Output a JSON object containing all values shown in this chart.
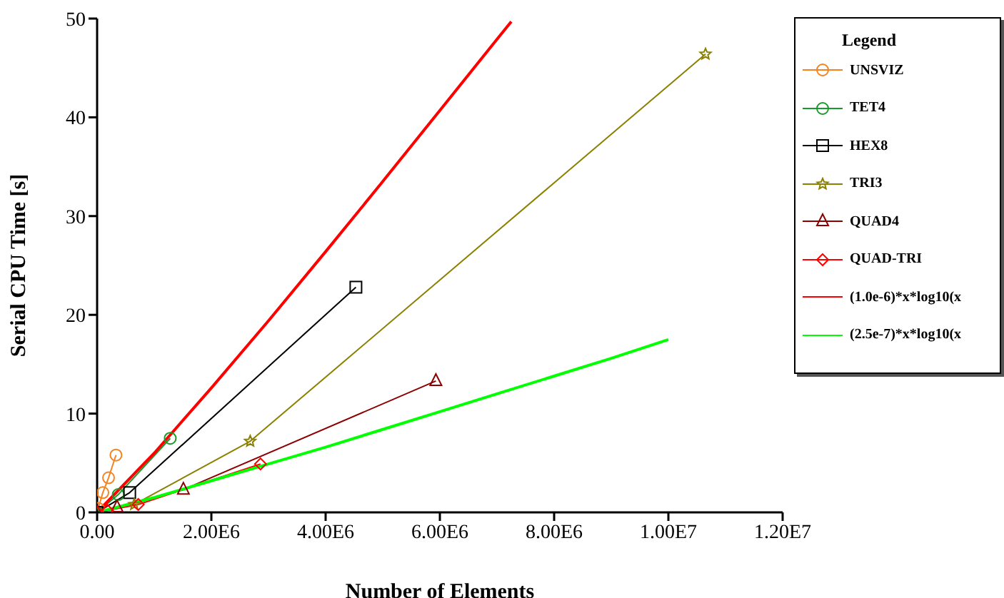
{
  "chart_data": {
    "type": "line",
    "title": null,
    "xlabel": "Number of Elements",
    "ylabel": "Serial CPU Time [s]",
    "legend_title": "Legend",
    "legend": "right",
    "xlim": [
      0,
      12000000
    ],
    "ylim": [
      0,
      50
    ],
    "xticks": [
      {
        "value": 0,
        "label": "0.00"
      },
      {
        "value": 2000000,
        "label": "2.00E6"
      },
      {
        "value": 4000000,
        "label": "4.00E6"
      },
      {
        "value": 6000000,
        "label": "6.00E6"
      },
      {
        "value": 8000000,
        "label": "8.00E6"
      },
      {
        "value": 10000000,
        "label": "1.00E7"
      },
      {
        "value": 12000000,
        "label": "1.20E7"
      }
    ],
    "yticks": [
      0,
      10,
      20,
      30,
      40,
      50
    ],
    "series": [
      {
        "name": "UNSVIZ",
        "color": "#f5831f",
        "marker": "circle",
        "x": [
          20000,
          100000,
          200000,
          330000
        ],
        "values": [
          0.4,
          2.0,
          3.5,
          5.8
        ]
      },
      {
        "name": "TET4",
        "color": "#1a9a2a",
        "marker": "circle",
        "x": [
          0,
          370000,
          1280000
        ],
        "values": [
          0,
          1.8,
          7.5
        ]
      },
      {
        "name": "HEX8",
        "color": "#000000",
        "marker": "square",
        "x": [
          0,
          570000,
          4530000
        ],
        "values": [
          0,
          2.0,
          22.8
        ]
      },
      {
        "name": "TRI3",
        "color": "#8b8000",
        "marker": "star",
        "x": [
          0,
          650000,
          2680000,
          10650000
        ],
        "values": [
          0,
          0.8,
          7.2,
          46.4
        ]
      },
      {
        "name": "QUAD4",
        "color": "#8b0000",
        "marker": "triangle",
        "x": [
          0,
          350000,
          1510000,
          5930000
        ],
        "values": [
          0,
          0.5,
          2.3,
          13.3
        ]
      },
      {
        "name": "QUAD-TRI",
        "color": "#ff0000",
        "marker": "diamond",
        "x": [
          0,
          180000,
          720000,
          2860000
        ],
        "values": [
          0,
          0.2,
          0.8,
          4.9
        ]
      },
      {
        "name": "(1.0e-6)*x*log10(x",
        "color": "#ff0000",
        "marker": "none",
        "x": [
          0,
          1000000,
          2000000,
          3000000,
          4000000,
          5000000,
          6000000,
          7000000,
          7250000
        ],
        "values": [
          0,
          6.0,
          12.6,
          19.4,
          26.4,
          33.5,
          40.7,
          47.9,
          49.7
        ]
      },
      {
        "name": "(2.5e-7)*x*log10(x",
        "color": "#00ff00",
        "marker": "none",
        "x": [
          0,
          1000000,
          2000000,
          3000000,
          4000000,
          5000000,
          6000000,
          7000000,
          8000000,
          9000000,
          10000000
        ],
        "values": [
          0,
          1.5,
          3.2,
          4.9,
          6.6,
          8.4,
          10.2,
          12.0,
          13.8,
          15.6,
          17.5
        ]
      }
    ]
  }
}
